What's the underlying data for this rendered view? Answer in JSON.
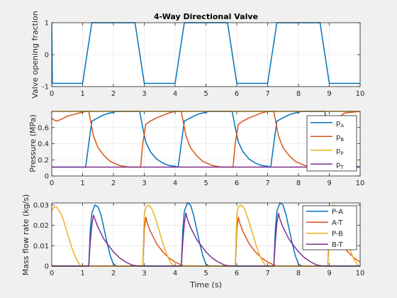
{
  "chart_data": [
    {
      "type": "line",
      "title": "4-Way Directional Valve",
      "xlabel": "",
      "ylabel": "Valve opening fraction",
      "xlim": [
        0,
        10
      ],
      "ylim": [
        -1,
        1
      ],
      "xticks": [
        0,
        1,
        2,
        3,
        4,
        5,
        6,
        7,
        8,
        9,
        10
      ],
      "yticks": [
        -1,
        0,
        1
      ],
      "grid": true,
      "series": [
        {
          "color": "#0072BD",
          "x": [
            0,
            0.02,
            1.0,
            1.3,
            2.7,
            3.0,
            4.0,
            4.3,
            5.7,
            6.0,
            7.0,
            7.3,
            8.7,
            9.0,
            10.0
          ],
          "y": [
            1,
            -0.9,
            -0.9,
            1,
            1,
            -0.9,
            -0.9,
            1,
            1,
            -0.9,
            -0.9,
            1,
            1,
            -0.9,
            -0.9
          ]
        }
      ]
    },
    {
      "type": "line",
      "title": "",
      "xlabel": "",
      "ylabel": "Pressure (MPa)",
      "xlim": [
        0,
        10
      ],
      "ylim": [
        0,
        0.8
      ],
      "xticks": [
        0,
        1,
        2,
        3,
        4,
        5,
        6,
        7,
        8,
        9,
        10
      ],
      "yticks": [
        0,
        0.2,
        0.4,
        0.6
      ],
      "grid": true,
      "legend": "top-right",
      "series": [
        {
          "name": "p",
          "sub": "A",
          "color": "#0072BD",
          "x": [
            0,
            1.1,
            1.2,
            1.3,
            1.4,
            1.5,
            1.6,
            1.7,
            1.8,
            1.9,
            2.1,
            2.4,
            2.7,
            2.85,
            2.95,
            3.05,
            3.2,
            3.4,
            3.6,
            3.8,
            4.0,
            4.1,
            4.2,
            4.3,
            4.4,
            4.5,
            4.6,
            4.7,
            4.8,
            4.9,
            5.1,
            5.4,
            5.7,
            5.85,
            5.95,
            6.05,
            6.2,
            6.4,
            6.6,
            6.8,
            7.0,
            7.1,
            7.2,
            7.3,
            7.4,
            7.5,
            7.6,
            7.7,
            7.8,
            7.9,
            8.1,
            8.4,
            8.7,
            8.85,
            8.95,
            9.05,
            9.2,
            9.4,
            9.6,
            9.8,
            10.0
          ],
          "y": [
            0.11,
            0.11,
            0.4,
            0.68,
            0.7,
            0.72,
            0.74,
            0.76,
            0.77,
            0.78,
            0.8,
            0.8,
            0.8,
            0.8,
            0.6,
            0.42,
            0.3,
            0.21,
            0.16,
            0.13,
            0.12,
            0.11,
            0.4,
            0.68,
            0.7,
            0.72,
            0.74,
            0.76,
            0.77,
            0.78,
            0.8,
            0.8,
            0.8,
            0.8,
            0.6,
            0.42,
            0.3,
            0.21,
            0.16,
            0.13,
            0.12,
            0.11,
            0.4,
            0.68,
            0.7,
            0.72,
            0.74,
            0.76,
            0.77,
            0.78,
            0.8,
            0.8,
            0.8,
            0.8,
            0.6,
            0.42,
            0.3,
            0.21,
            0.16,
            0.13,
            0.11
          ]
        },
        {
          "name": "p",
          "sub": "B",
          "color": "#D95319",
          "x": [
            0,
            0.05,
            0.15,
            0.3,
            0.5,
            0.7,
            0.9,
            1.1,
            1.2,
            1.25,
            1.35,
            1.5,
            1.7,
            1.9,
            2.2,
            2.5,
            2.8,
            2.88,
            2.95,
            3.05,
            3.2,
            3.4,
            3.6,
            3.8,
            4.0,
            4.1,
            4.2,
            4.25,
            4.35,
            4.5,
            4.7,
            4.9,
            5.2,
            5.5,
            5.8,
            5.88,
            5.95,
            6.05,
            6.2,
            6.4,
            6.6,
            6.8,
            7.0,
            7.1,
            7.2,
            7.25,
            7.35,
            7.5,
            7.7,
            7.9,
            8.2,
            8.5,
            8.8,
            8.88,
            8.95,
            9.05,
            9.2,
            9.5,
            10.0
          ],
          "y": [
            0.72,
            0.7,
            0.68,
            0.7,
            0.74,
            0.76,
            0.78,
            0.8,
            0.8,
            0.7,
            0.5,
            0.35,
            0.25,
            0.18,
            0.13,
            0.11,
            0.11,
            0.11,
            0.4,
            0.64,
            0.68,
            0.72,
            0.75,
            0.78,
            0.8,
            0.8,
            0.8,
            0.7,
            0.5,
            0.35,
            0.25,
            0.18,
            0.13,
            0.11,
            0.11,
            0.11,
            0.4,
            0.64,
            0.68,
            0.72,
            0.75,
            0.78,
            0.8,
            0.8,
            0.8,
            0.7,
            0.5,
            0.35,
            0.25,
            0.18,
            0.13,
            0.11,
            0.11,
            0.11,
            0.4,
            0.64,
            0.7,
            0.78,
            0.8
          ]
        },
        {
          "name": "p",
          "sub": "P",
          "color": "#EDB120",
          "x": [
            0,
            10
          ],
          "y": [
            0.8,
            0.8
          ]
        },
        {
          "name": "p",
          "sub": "T",
          "color": "#7E2F8E",
          "x": [
            0,
            10
          ],
          "y": [
            0.11,
            0.11
          ]
        }
      ]
    },
    {
      "type": "line",
      "title": "",
      "xlabel": "Time (s)",
      "ylabel": "Mass flow rate (kg/s)",
      "xlim": [
        0,
        10
      ],
      "ylim": [
        0,
        0.031
      ],
      "xticks": [
        0,
        1,
        2,
        3,
        4,
        5,
        6,
        7,
        8,
        9,
        10
      ],
      "yticks": [
        0,
        0.01,
        0.02,
        0.03
      ],
      "grid": true,
      "legend": "top-right",
      "series": [
        {
          "name": "P-A",
          "color": "#0072BD",
          "x": [
            0,
            1.2,
            1.25,
            1.3,
            1.4,
            1.5,
            1.6,
            1.7,
            1.8,
            1.9,
            2.0,
            2.1,
            4.2,
            4.25,
            4.3,
            4.4,
            4.5,
            4.6,
            4.7,
            4.8,
            4.9,
            5.0,
            5.1,
            7.2,
            7.25,
            7.3,
            7.4,
            7.5,
            7.6,
            7.7,
            7.8,
            7.9,
            8.0,
            8.1,
            10.0
          ],
          "y": [
            0,
            0,
            0.018,
            0.026,
            0.03,
            0.029,
            0.025,
            0.018,
            0.011,
            0.005,
            0.001,
            0,
            0,
            0.018,
            0.027,
            0.031,
            0.03,
            0.025,
            0.018,
            0.011,
            0.005,
            0.001,
            0,
            0,
            0.018,
            0.027,
            0.031,
            0.03,
            0.025,
            0.018,
            0.011,
            0.005,
            0.001,
            0,
            0
          ]
        },
        {
          "name": "A-T",
          "color": "#D95319",
          "x": [
            0,
            2.95,
            2.98,
            3.0,
            3.05,
            3.1,
            3.2,
            3.3,
            3.4,
            3.6,
            3.8,
            4.0,
            4.2,
            4.3,
            5.95,
            5.98,
            6.0,
            6.05,
            6.1,
            6.2,
            6.3,
            6.4,
            6.6,
            6.8,
            7.0,
            7.2,
            7.3,
            8.95,
            8.98,
            9.0,
            9.05,
            9.1,
            9.2,
            9.3,
            9.4,
            9.6,
            9.8,
            10.0
          ],
          "y": [
            0,
            0,
            0.01,
            0.018,
            0.024,
            0.021,
            0.017,
            0.014,
            0.011,
            0.007,
            0.004,
            0.002,
            0.0005,
            0,
            0,
            0.01,
            0.018,
            0.024,
            0.021,
            0.017,
            0.014,
            0.011,
            0.007,
            0.004,
            0.002,
            0.0005,
            0,
            0,
            0.01,
            0.018,
            0.024,
            0.021,
            0.017,
            0.014,
            0.011,
            0.007,
            0.004,
            0.002
          ]
        },
        {
          "name": "P-B",
          "color": "#EDB120",
          "x": [
            0,
            0.03,
            0.08,
            0.15,
            0.25,
            0.35,
            0.45,
            0.55,
            0.65,
            0.75,
            0.85,
            0.95,
            2.95,
            2.98,
            3.0,
            3.05,
            3.15,
            3.25,
            3.35,
            3.45,
            3.55,
            3.65,
            3.75,
            3.85,
            3.95,
            5.95,
            5.98,
            6.0,
            6.05,
            6.15,
            6.25,
            6.35,
            6.45,
            6.55,
            6.65,
            6.75,
            6.85,
            6.95,
            8.95,
            8.98,
            9.0,
            9.05,
            9.15,
            9.25,
            9.35,
            9.45,
            9.55,
            9.65,
            9.75,
            9.85,
            9.95,
            10.0
          ],
          "y": [
            0.027,
            0.028,
            0.029,
            0.029,
            0.027,
            0.024,
            0.019,
            0.014,
            0.009,
            0.005,
            0.002,
            0,
            0,
            0.015,
            0.025,
            0.029,
            0.03,
            0.028,
            0.024,
            0.019,
            0.014,
            0.009,
            0.005,
            0.002,
            0,
            0,
            0.015,
            0.025,
            0.029,
            0.03,
            0.028,
            0.024,
            0.019,
            0.014,
            0.009,
            0.005,
            0.002,
            0,
            0,
            0.015,
            0.025,
            0.029,
            0.03,
            0.028,
            0.024,
            0.019,
            0.014,
            0.009,
            0.005,
            0.002,
            0,
            0
          ]
        },
        {
          "name": "B-T",
          "color": "#7E2F8E",
          "x": [
            0,
            1.2,
            1.25,
            1.3,
            1.35,
            1.4,
            1.5,
            1.6,
            1.7,
            1.8,
            2.0,
            2.2,
            2.4,
            2.6,
            2.8,
            4.2,
            4.25,
            4.3,
            4.35,
            4.4,
            4.5,
            4.6,
            4.7,
            4.8,
            5.0,
            5.2,
            5.4,
            5.6,
            5.8,
            7.2,
            7.25,
            7.3,
            7.35,
            7.4,
            7.5,
            7.6,
            7.7,
            7.8,
            8.0,
            8.2,
            8.4,
            8.6,
            8.8,
            10.0
          ],
          "y": [
            0,
            0,
            0.012,
            0.02,
            0.025,
            0.023,
            0.019,
            0.016,
            0.013,
            0.011,
            0.007,
            0.004,
            0.002,
            0.0005,
            0,
            0,
            0.012,
            0.021,
            0.026,
            0.023,
            0.019,
            0.016,
            0.013,
            0.011,
            0.007,
            0.004,
            0.002,
            0.0005,
            0,
            0,
            0.012,
            0.021,
            0.026,
            0.023,
            0.019,
            0.016,
            0.013,
            0.011,
            0.007,
            0.004,
            0.002,
            0.0005,
            0,
            0
          ]
        }
      ]
    }
  ]
}
